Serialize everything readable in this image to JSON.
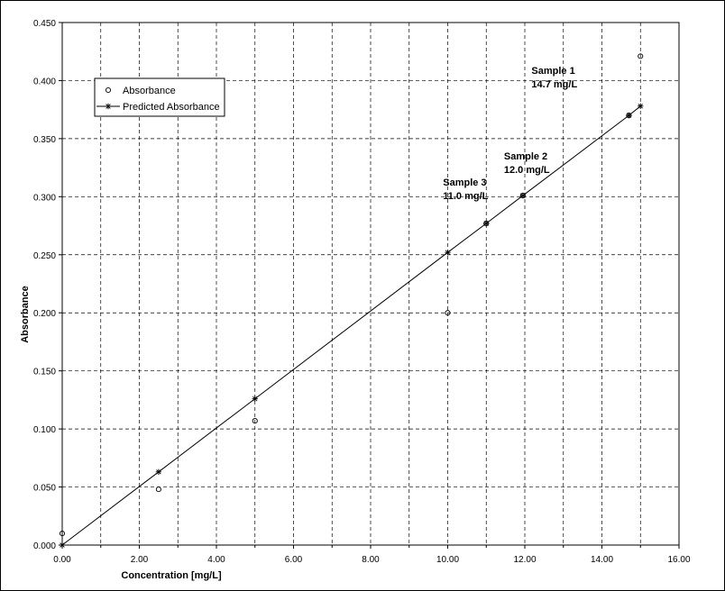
{
  "chart_data": {
    "type": "scatter",
    "xlabel": "Concentration [mg/L]",
    "ylabel": "Absorbance",
    "xlim": [
      0,
      16
    ],
    "ylim": [
      0,
      0.45
    ],
    "x_ticks": [
      "0.00",
      "2.00",
      "4.00",
      "6.00",
      "8.00",
      "10.00",
      "12.00",
      "14.00",
      "16.00"
    ],
    "y_ticks": [
      "0.000",
      "0.050",
      "0.100",
      "0.150",
      "0.200",
      "0.250",
      "0.300",
      "0.350",
      "0.400",
      "0.450"
    ],
    "grid": true,
    "legend_position": "upper-left",
    "series": [
      {
        "name": "Absorbance",
        "marker": "circle",
        "line": false,
        "points": [
          {
            "x": 0,
            "y": 0.01
          },
          {
            "x": 2.5,
            "y": 0.048
          },
          {
            "x": 5,
            "y": 0.107
          },
          {
            "x": 10,
            "y": 0.2
          },
          {
            "x": 11,
            "y": 0.277
          },
          {
            "x": 11.95,
            "y": 0.301
          },
          {
            "x": 14.7,
            "y": 0.37
          },
          {
            "x": 15,
            "y": 0.421
          }
        ]
      },
      {
        "name": "Predicted Absorbance",
        "marker": "star",
        "line": true,
        "points": [
          {
            "x": 0,
            "y": 0.0
          },
          {
            "x": 2.5,
            "y": 0.063
          },
          {
            "x": 5,
            "y": 0.126
          },
          {
            "x": 10,
            "y": 0.252
          },
          {
            "x": 11,
            "y": 0.277
          },
          {
            "x": 11.95,
            "y": 0.301
          },
          {
            "x": 14.7,
            "y": 0.37
          },
          {
            "x": 15,
            "y": 0.378
          }
        ]
      }
    ],
    "annotations": [
      {
        "line1": "Sample 1",
        "line2": "14.7 mg/L",
        "x": 14.7,
        "y": 0.37
      },
      {
        "line1": "Sample 2",
        "line2": "12.0 mg/L",
        "x": 11.95,
        "y": 0.301
      },
      {
        "line1": "Sample 3",
        "line2": "11.0 mg/L",
        "x": 11,
        "y": 0.277
      }
    ]
  }
}
